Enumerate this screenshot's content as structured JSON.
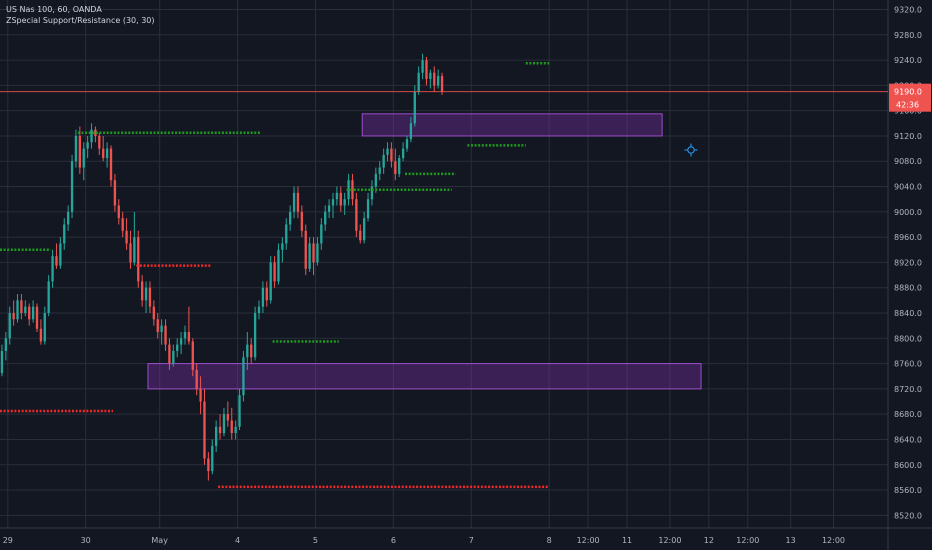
{
  "window": {
    "symbol_line": "US Nas 100, 60, OANDA",
    "indicator_line": "ZSpecial Support/Resistance (30, 30)"
  },
  "price_badge": {
    "value": "9190.0",
    "countdown": "42:36",
    "color": "#ef5350"
  },
  "colors": {
    "background": "#131722",
    "grid": "#2a2e39",
    "up": "#26a69a",
    "down": "#ef5350",
    "support": "#ef2a2a",
    "resistance": "#1f9a1f",
    "zone": "#7b2fa8",
    "axis_text": "#b2b5be"
  },
  "icons": {
    "cursor": "crosshair-move-icon"
  },
  "chart_data": {
    "type": "candlestick",
    "title": "US Nas 100, 60, OANDA",
    "indicator": "ZSpecial Support/Resistance (30, 30)",
    "ylim": [
      8500,
      9335
    ],
    "y_ticks": [
      8520,
      8560,
      8600,
      8640,
      8680,
      8720,
      8760,
      8800,
      8840,
      8880,
      8920,
      8960,
      9000,
      9040,
      9080,
      9120,
      9160,
      9200,
      9240,
      9280,
      9320
    ],
    "x_range": [
      0,
      228
    ],
    "x_ticks": [
      {
        "label": "29",
        "x": 2
      },
      {
        "label": "30",
        "x": 22
      },
      {
        "label": "May",
        "x": 41
      },
      {
        "label": "4",
        "x": 61
      },
      {
        "label": "5",
        "x": 81
      },
      {
        "label": "6",
        "x": 101
      },
      {
        "label": "7",
        "x": 121
      },
      {
        "label": "8",
        "x": 141
      },
      {
        "label": "12:00",
        "x": 151
      },
      {
        "label": "11",
        "x": 161
      },
      {
        "label": "12:00",
        "x": 172
      },
      {
        "label": "12",
        "x": 182
      },
      {
        "label": "12:00",
        "x": 192
      },
      {
        "label": "13",
        "x": 203
      },
      {
        "label": "12:00",
        "x": 214
      }
    ],
    "grid": true,
    "last_price": 9190.0,
    "candles": [
      [
        8745,
        8790,
        8740,
        8780
      ],
      [
        8780,
        8810,
        8765,
        8800
      ],
      [
        8800,
        8850,
        8790,
        8840
      ],
      [
        8840,
        8860,
        8820,
        8830
      ],
      [
        8830,
        8870,
        8825,
        8860
      ],
      [
        8860,
        8870,
        8830,
        8840
      ],
      [
        8840,
        8860,
        8835,
        8850
      ],
      [
        8850,
        8855,
        8820,
        8830
      ],
      [
        8830,
        8860,
        8825,
        8850
      ],
      [
        8850,
        8855,
        8810,
        8815
      ],
      [
        8815,
        8830,
        8790,
        8795
      ],
      [
        8795,
        8850,
        8790,
        8840
      ],
      [
        8840,
        8900,
        8835,
        8890
      ],
      [
        8890,
        8940,
        8880,
        8930
      ],
      [
        8930,
        8950,
        8910,
        8915
      ],
      [
        8915,
        8960,
        8910,
        8950
      ],
      [
        8950,
        8990,
        8940,
        8980
      ],
      [
        8980,
        9010,
        8970,
        9000
      ],
      [
        9000,
        9090,
        8990,
        9080
      ],
      [
        9080,
        9130,
        9070,
        9120
      ],
      [
        9120,
        9135,
        9060,
        9070
      ],
      [
        9070,
        9110,
        9050,
        9100
      ],
      [
        9100,
        9120,
        9085,
        9110
      ],
      [
        9110,
        9140,
        9100,
        9130
      ],
      [
        9130,
        9135,
        9110,
        9120
      ],
      [
        9120,
        9125,
        9090,
        9100
      ],
      [
        9100,
        9120,
        9080,
        9085
      ],
      [
        9085,
        9110,
        9070,
        9100
      ],
      [
        9100,
        9105,
        9040,
        9050
      ],
      [
        9050,
        9060,
        9000,
        9010
      ],
      [
        9010,
        9020,
        8980,
        8990
      ],
      [
        8990,
        9000,
        8960,
        8970
      ],
      [
        8970,
        8990,
        8940,
        8950
      ],
      [
        8950,
        8970,
        8910,
        8920
      ],
      [
        8920,
        9000,
        8915,
        8960
      ],
      [
        8960,
        8970,
        8880,
        8890
      ],
      [
        8890,
        8900,
        8850,
        8860
      ],
      [
        8860,
        8890,
        8840,
        8880
      ],
      [
        8880,
        8890,
        8840,
        8850
      ],
      [
        8850,
        8860,
        8820,
        8830
      ],
      [
        8830,
        8840,
        8800,
        8810
      ],
      [
        8810,
        8830,
        8790,
        8820
      ],
      [
        8820,
        8830,
        8780,
        8790
      ],
      [
        8790,
        8800,
        8750,
        8760
      ],
      [
        8760,
        8790,
        8755,
        8780
      ],
      [
        8780,
        8800,
        8770,
        8790
      ],
      [
        8790,
        8810,
        8775,
        8800
      ],
      [
        8800,
        8820,
        8790,
        8810
      ],
      [
        8810,
        8850,
        8790,
        8795
      ],
      [
        8795,
        8800,
        8740,
        8750
      ],
      [
        8750,
        8760,
        8710,
        8720
      ],
      [
        8720,
        8740,
        8680,
        8700
      ],
      [
        8700,
        8720,
        8600,
        8610
      ],
      [
        8610,
        8620,
        8575,
        8590
      ],
      [
        8590,
        8640,
        8585,
        8630
      ],
      [
        8630,
        8670,
        8620,
        8660
      ],
      [
        8660,
        8680,
        8640,
        8650
      ],
      [
        8650,
        8690,
        8645,
        8680
      ],
      [
        8680,
        8700,
        8660,
        8670
      ],
      [
        8670,
        8690,
        8640,
        8650
      ],
      [
        8650,
        8670,
        8640,
        8660
      ],
      [
        8660,
        8720,
        8655,
        8710
      ],
      [
        8710,
        8780,
        8700,
        8770
      ],
      [
        8770,
        8810,
        8750,
        8790
      ],
      [
        8790,
        8800,
        8760,
        8770
      ],
      [
        8770,
        8850,
        8765,
        8840
      ],
      [
        8840,
        8860,
        8830,
        8850
      ],
      [
        8850,
        8890,
        8840,
        8880
      ],
      [
        8880,
        8890,
        8850,
        8860
      ],
      [
        8860,
        8930,
        8855,
        8920
      ],
      [
        8920,
        8930,
        8880,
        8890
      ],
      [
        8890,
        8950,
        8885,
        8940
      ],
      [
        8940,
        8960,
        8920,
        8950
      ],
      [
        8950,
        8990,
        8940,
        8980
      ],
      [
        8980,
        9010,
        8970,
        9000
      ],
      [
        9000,
        9040,
        8990,
        9030
      ],
      [
        9030,
        9040,
        8990,
        9000
      ],
      [
        9000,
        9010,
        8960,
        8970
      ],
      [
        8970,
        8980,
        8900,
        8910
      ],
      [
        8910,
        8960,
        8905,
        8950
      ],
      [
        8950,
        8960,
        8900,
        8920
      ],
      [
        8920,
        8960,
        8915,
        8950
      ],
      [
        8950,
        8990,
        8940,
        8980
      ],
      [
        8980,
        9010,
        8970,
        9000
      ],
      [
        9000,
        9020,
        8990,
        9010
      ],
      [
        9010,
        9030,
        8990,
        9020
      ],
      [
        9020,
        9040,
        9010,
        9030
      ],
      [
        9030,
        9040,
        9000,
        9010
      ],
      [
        9010,
        9030,
        8995,
        9020
      ],
      [
        9020,
        9060,
        9010,
        9050
      ],
      [
        9050,
        9060,
        9010,
        9020
      ],
      [
        9020,
        9030,
        8960,
        8970
      ],
      [
        8970,
        8980,
        8950,
        8955
      ],
      [
        8955,
        9000,
        8950,
        8990
      ],
      [
        8990,
        9030,
        8985,
        9020
      ],
      [
        9020,
        9050,
        9010,
        9040
      ],
      [
        9040,
        9070,
        9030,
        9060
      ],
      [
        9060,
        9080,
        9050,
        9070
      ],
      [
        9070,
        9100,
        9060,
        9090
      ],
      [
        9090,
        9110,
        9080,
        9100
      ],
      [
        9100,
        9110,
        9070,
        9080
      ],
      [
        9080,
        9100,
        9050,
        9060
      ],
      [
        9060,
        9090,
        9055,
        9085
      ],
      [
        9085,
        9110,
        9080,
        9100
      ],
      [
        9100,
        9120,
        9095,
        9115
      ],
      [
        9115,
        9150,
        9110,
        9140
      ],
      [
        9140,
        9200,
        9135,
        9190
      ],
      [
        9190,
        9230,
        9185,
        9220
      ],
      [
        9220,
        9250,
        9210,
        9240
      ],
      [
        9240,
        9245,
        9200,
        9210
      ],
      [
        9210,
        9225,
        9195,
        9220
      ],
      [
        9220,
        9230,
        9190,
        9200
      ],
      [
        9200,
        9225,
        9195,
        9215
      ],
      [
        9215,
        9220,
        9185,
        9190
      ]
    ],
    "candle_x_start": 0,
    "candle_x_step": 1.0,
    "levels": [
      {
        "kind": "resistance",
        "price": 8940,
        "x1": 0,
        "x2": 13
      },
      {
        "kind": "resistance",
        "price": 9125,
        "x1": 20,
        "x2": 67
      },
      {
        "kind": "support",
        "price": 8915,
        "x1": 35,
        "x2": 54
      },
      {
        "kind": "support",
        "price": 8685,
        "x1": 0,
        "x2": 29
      },
      {
        "kind": "resistance",
        "price": 8795,
        "x1": 70,
        "x2": 87
      },
      {
        "kind": "support",
        "price": 8565,
        "x1": 56,
        "x2": 141
      },
      {
        "kind": "resistance",
        "price": 9035,
        "x1": 89,
        "x2": 116
      },
      {
        "kind": "resistance",
        "price": 9060,
        "x1": 104,
        "x2": 117
      },
      {
        "kind": "resistance",
        "price": 9105,
        "x1": 120,
        "x2": 135
      },
      {
        "kind": "resistance",
        "price": 9235,
        "x1": 135,
        "x2": 141
      }
    ],
    "zones": [
      {
        "y1": 9120,
        "y2": 9155,
        "x1": 93,
        "x2": 170
      },
      {
        "y1": 8720,
        "y2": 8760,
        "x1": 38,
        "x2": 180
      }
    ]
  }
}
